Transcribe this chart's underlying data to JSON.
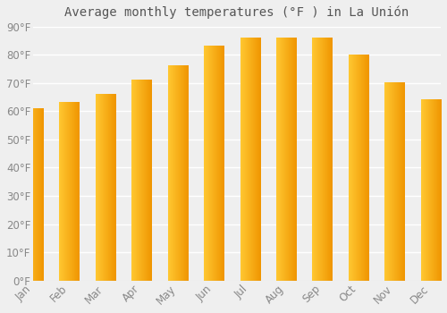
{
  "title": "Average monthly temperatures (°F ) in La Unión",
  "months": [
    "Jan",
    "Feb",
    "Mar",
    "Apr",
    "May",
    "Jun",
    "Jul",
    "Aug",
    "Sep",
    "Oct",
    "Nov",
    "Dec"
  ],
  "values": [
    61,
    63,
    66,
    71,
    76,
    83,
    86,
    86,
    86,
    80,
    70,
    64
  ],
  "bar_color_left": "#FFBE30",
  "bar_color_right": "#F5A000",
  "ylim": [
    0,
    90
  ],
  "yticks": [
    0,
    10,
    20,
    30,
    40,
    50,
    60,
    70,
    80,
    90
  ],
  "ytick_labels": [
    "0°F",
    "10°F",
    "20°F",
    "30°F",
    "40°F",
    "50°F",
    "60°F",
    "70°F",
    "80°F",
    "90°F"
  ],
  "bg_color": "#EFEFEF",
  "plot_bg_color": "#EFEFEF",
  "grid_color": "#FFFFFF",
  "title_fontsize": 10,
  "tick_fontsize": 8.5,
  "bar_width": 0.55
}
